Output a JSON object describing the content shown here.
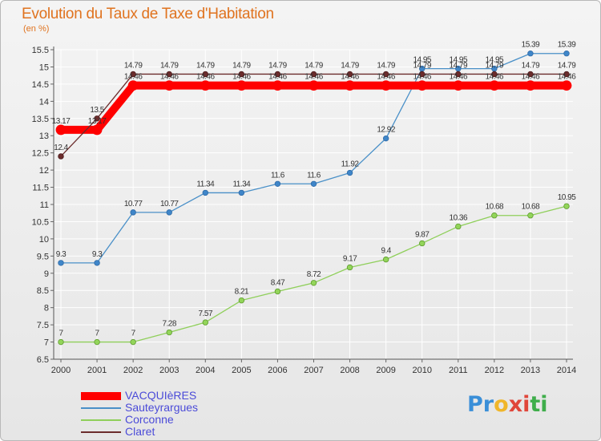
{
  "title": "Evolution du Taux de Taxe d'Habitation",
  "unit": "(en %)",
  "logo": {
    "text": "Proxiti",
    "letter_colors": [
      "#3a8fd8",
      "#3a8fd8",
      "#f0b62a",
      "#e0463a",
      "#e0463a",
      "#3fae4b",
      "#3fae4b"
    ]
  },
  "chart_data": {
    "type": "line",
    "x": [
      2000,
      2001,
      2002,
      2003,
      2004,
      2005,
      2006,
      2007,
      2008,
      2009,
      2010,
      2011,
      2012,
      2013,
      2014
    ],
    "x_tick_labels": [
      "2000",
      "2001",
      "2002",
      "2003",
      "2004",
      "2005",
      "2006",
      "2007",
      "2008",
      "2009",
      "2010",
      "2011",
      "2012",
      "2013",
      "2014"
    ],
    "ylim": [
      6.5,
      15.5
    ],
    "y_ticks": [
      6.5,
      7,
      7.5,
      8,
      8.5,
      9,
      9.5,
      10,
      10.5,
      11,
      11.5,
      12,
      12.5,
      13,
      13.5,
      14,
      14.5,
      15,
      15.5
    ],
    "y_tick_labels": [
      "6.5",
      "7",
      "7.5",
      "8",
      "8.5",
      "9",
      "9.5",
      "10",
      "10.5",
      "11",
      "11.5",
      "12",
      "12.5",
      "13",
      "13.5",
      "14",
      "14.5",
      "15",
      "15.5"
    ],
    "grid": true,
    "legend_position": "bottom-left",
    "series": [
      {
        "name": "VACQUIèRES",
        "color": "#ff0000",
        "values": [
          13.17,
          13.17,
          14.46,
          14.46,
          14.46,
          14.46,
          14.46,
          14.46,
          14.46,
          14.46,
          14.46,
          14.46,
          14.46,
          14.46,
          14.46
        ],
        "labels": [
          "13.17",
          "13.17",
          "14.46",
          "14.46",
          "14.46",
          "14.46",
          "14.46",
          "14.46",
          "14.46",
          "14.46",
          "14.46",
          "14.46",
          "14.46",
          "14.46",
          "14.46"
        ]
      },
      {
        "name": "Sauteyrargues",
        "color": "#4a90c8",
        "values": [
          9.3,
          9.3,
          10.77,
          10.77,
          11.34,
          11.34,
          11.6,
          11.6,
          11.92,
          12.92,
          14.95,
          14.95,
          14.95,
          15.39,
          15.39
        ],
        "labels": [
          "9.3",
          "9.3",
          "10.77",
          "10.77",
          "11.34",
          "11.34",
          "11.6",
          "11.6",
          "11.92",
          "12.92",
          "14.95",
          "14.95",
          "14.95",
          "15.39",
          "15.39"
        ]
      },
      {
        "name": "Corconne",
        "color": "#8fcf5a",
        "values": [
          7,
          7,
          7,
          7.28,
          7.57,
          8.21,
          8.47,
          8.72,
          9.17,
          9.4,
          9.87,
          10.36,
          10.68,
          10.68,
          10.95
        ],
        "labels": [
          "7",
          "7",
          "7",
          "7.28",
          "7.57",
          "8.21",
          "8.47",
          "8.72",
          "9.17",
          "9.4",
          "9.87",
          "10.36",
          "10.68",
          "10.68",
          "10.95"
        ]
      },
      {
        "name": "Claret",
        "color": "#6b2c2c",
        "values": [
          12.4,
          13.5,
          14.79,
          14.79,
          14.79,
          14.79,
          14.79,
          14.79,
          14.79,
          14.79,
          14.79,
          14.79,
          14.79,
          14.79,
          14.79
        ],
        "labels": [
          "12.4",
          "13.5",
          "14.79",
          "14.79",
          "14.79",
          "14.79",
          "14.79",
          "14.79",
          "14.79",
          "14.79",
          "14.79",
          "14.79",
          "14.79",
          "14.79",
          "14.79"
        ]
      }
    ]
  }
}
